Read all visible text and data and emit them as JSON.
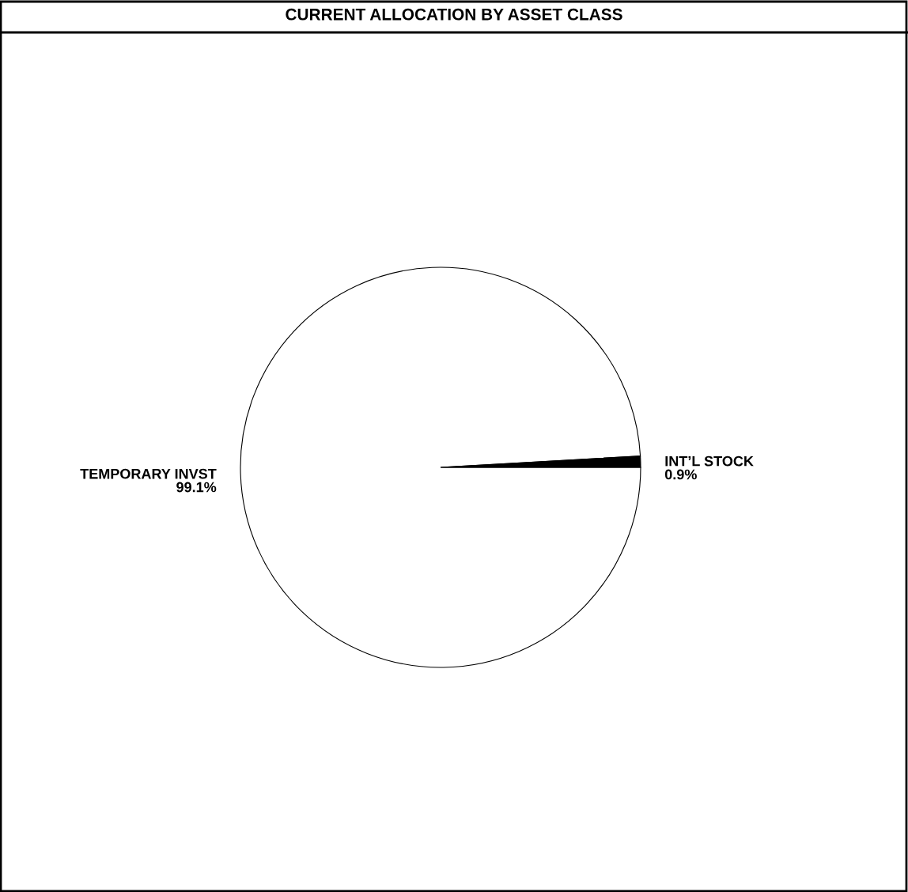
{
  "chart_data": {
    "type": "pie",
    "title": "CURRENT ALLOCATION BY ASSET CLASS",
    "categories": [
      "TEMPORARY INVST",
      "INT’L STOCK"
    ],
    "values": [
      99.1,
      0.9
    ],
    "value_labels": [
      "99.1%",
      "0.9%"
    ],
    "colors": [
      "#ffffff",
      "#000000"
    ]
  }
}
